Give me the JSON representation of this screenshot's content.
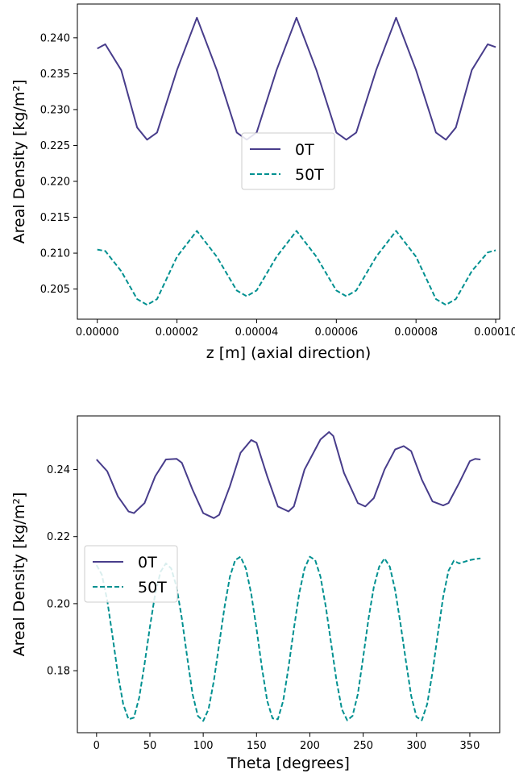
{
  "chart_data": [
    {
      "type": "line",
      "xlabel": "z [m] (axial direction)",
      "ylabel": "Areal Density [kg/m²]",
      "xlim": [
        -5e-06,
        0.000101
      ],
      "ylim": [
        0.2008,
        0.2447
      ],
      "xticks": [
        0.0,
        2e-05,
        4e-05,
        6e-05,
        8e-05,
        0.0001
      ],
      "xtick_labels": [
        "0.00000",
        "0.00002",
        "0.00004",
        "0.00006",
        "0.00008",
        "0.00010"
      ],
      "yticks": [
        0.205,
        0.21,
        0.215,
        0.22,
        0.225,
        0.23,
        0.235,
        0.24
      ],
      "ytick_labels": [
        "0.205",
        "0.210",
        "0.215",
        "0.220",
        "0.225",
        "0.230",
        "0.235",
        "0.240"
      ],
      "legend": {
        "position": "center",
        "entries": [
          "0T",
          "50T"
        ]
      },
      "series": [
        {
          "name": "0T",
          "style": "solid",
          "color": "#483d8b",
          "x": [
            0,
            2e-06,
            6e-06,
            1e-05,
            1.25e-05,
            1.5e-05,
            2e-05,
            2.5e-05,
            3e-05,
            3.5e-05,
            3.75e-05,
            4e-05,
            4.5e-05,
            5e-05,
            5.5e-05,
            6e-05,
            6.25e-05,
            6.5e-05,
            7e-05,
            7.5e-05,
            8e-05,
            8.5e-05,
            8.75e-05,
            9e-05,
            9.4e-05,
            9.8e-05,
            0.0001
          ],
          "y": [
            0.2385,
            0.2391,
            0.2355,
            0.2275,
            0.2258,
            0.2268,
            0.2355,
            0.2428,
            0.2355,
            0.2268,
            0.2258,
            0.2268,
            0.2355,
            0.2428,
            0.2355,
            0.2268,
            0.2258,
            0.2268,
            0.2355,
            0.2428,
            0.2355,
            0.2268,
            0.2258,
            0.2275,
            0.2355,
            0.2391,
            0.2387
          ]
        },
        {
          "name": "50T",
          "style": "dashed",
          "color": "#009090",
          "x": [
            0,
            2e-06,
            6e-06,
            1e-05,
            1.25e-05,
            1.5e-05,
            2e-05,
            2.5e-05,
            3e-05,
            3.5e-05,
            3.75e-05,
            4e-05,
            4.5e-05,
            5e-05,
            5.5e-05,
            6e-05,
            6.25e-05,
            6.5e-05,
            7e-05,
            7.5e-05,
            8e-05,
            8.5e-05,
            8.75e-05,
            9e-05,
            9.4e-05,
            9.8e-05,
            0.0001
          ],
          "y": [
            0.2105,
            0.2103,
            0.2075,
            0.2036,
            0.2028,
            0.2036,
            0.2095,
            0.2131,
            0.2095,
            0.2048,
            0.204,
            0.2048,
            0.2095,
            0.2131,
            0.2095,
            0.2048,
            0.204,
            0.2048,
            0.2095,
            0.2131,
            0.2095,
            0.2036,
            0.2028,
            0.2036,
            0.2075,
            0.2101,
            0.2104
          ]
        }
      ]
    },
    {
      "type": "line",
      "xlabel": "Theta [degrees]",
      "ylabel": "Areal Density [kg/m²]",
      "xlim": [
        -18,
        378
      ],
      "ylim": [
        0.1615,
        0.256
      ],
      "xticks": [
        0,
        50,
        100,
        150,
        200,
        250,
        300,
        350
      ],
      "xtick_labels": [
        "0",
        "50",
        "100",
        "150",
        "200",
        "250",
        "300",
        "350"
      ],
      "yticks": [
        0.18,
        0.2,
        0.22,
        0.24
      ],
      "ytick_labels": [
        "0.18",
        "0.20",
        "0.22",
        "0.24"
      ],
      "legend": {
        "position": "center-left",
        "entries": [
          "0T",
          "50T"
        ]
      },
      "series": [
        {
          "name": "0T",
          "style": "solid",
          "color": "#483d8b",
          "x": [
            0,
            10,
            20,
            30,
            35,
            45,
            55,
            65,
            75,
            80,
            90,
            100,
            110,
            115,
            125,
            135,
            145,
            150,
            160,
            170,
            180,
            185,
            195,
            210,
            218,
            222,
            232,
            245,
            252,
            260,
            270,
            280,
            288,
            295,
            305,
            315,
            325,
            330,
            340,
            350,
            355,
            360
          ],
          "y": [
            0.243,
            0.2395,
            0.232,
            0.2275,
            0.227,
            0.23,
            0.238,
            0.243,
            0.2432,
            0.242,
            0.234,
            0.227,
            0.2255,
            0.2265,
            0.235,
            0.245,
            0.2488,
            0.248,
            0.238,
            0.229,
            0.2275,
            0.229,
            0.24,
            0.249,
            0.2512,
            0.25,
            0.239,
            0.23,
            0.229,
            0.2315,
            0.24,
            0.246,
            0.247,
            0.2455,
            0.237,
            0.2305,
            0.2293,
            0.23,
            0.236,
            0.2425,
            0.2432,
            0.243
          ]
        },
        {
          "name": "50T",
          "style": "dashed",
          "color": "#009090",
          "x": [
            0,
            5,
            10,
            15,
            20,
            25,
            30,
            35,
            40,
            45,
            50,
            55,
            60,
            65,
            70,
            75,
            80,
            85,
            90,
            95,
            100,
            105,
            110,
            115,
            120,
            125,
            130,
            135,
            140,
            145,
            150,
            155,
            160,
            165,
            170,
            175,
            180,
            185,
            190,
            195,
            200,
            205,
            210,
            215,
            220,
            225,
            230,
            235,
            240,
            245,
            250,
            255,
            260,
            265,
            270,
            275,
            280,
            285,
            290,
            295,
            300,
            305,
            310,
            315,
            320,
            325,
            330,
            335,
            340,
            345,
            350,
            355,
            360
          ],
          "y": [
            0.2115,
            0.2086,
            0.201,
            0.1902,
            0.179,
            0.17,
            0.1655,
            0.166,
            0.172,
            0.182,
            0.193,
            0.203,
            0.2095,
            0.212,
            0.2105,
            0.205,
            0.1955,
            0.184,
            0.173,
            0.1665,
            0.165,
            0.1685,
            0.177,
            0.188,
            0.199,
            0.208,
            0.213,
            0.214,
            0.2105,
            0.203,
            0.1925,
            0.181,
            0.171,
            0.1658,
            0.1655,
            0.171,
            0.181,
            0.1925,
            0.203,
            0.2105,
            0.214,
            0.213,
            0.208,
            0.199,
            0.188,
            0.177,
            0.1685,
            0.1652,
            0.1665,
            0.173,
            0.184,
            0.1955,
            0.205,
            0.211,
            0.2135,
            0.211,
            0.204,
            0.194,
            0.183,
            0.1725,
            0.1662,
            0.1652,
            0.17,
            0.1795,
            0.191,
            0.202,
            0.2098,
            0.2128,
            0.212,
            0.2125,
            0.213,
            0.2133,
            0.2135
          ]
        }
      ]
    }
  ]
}
